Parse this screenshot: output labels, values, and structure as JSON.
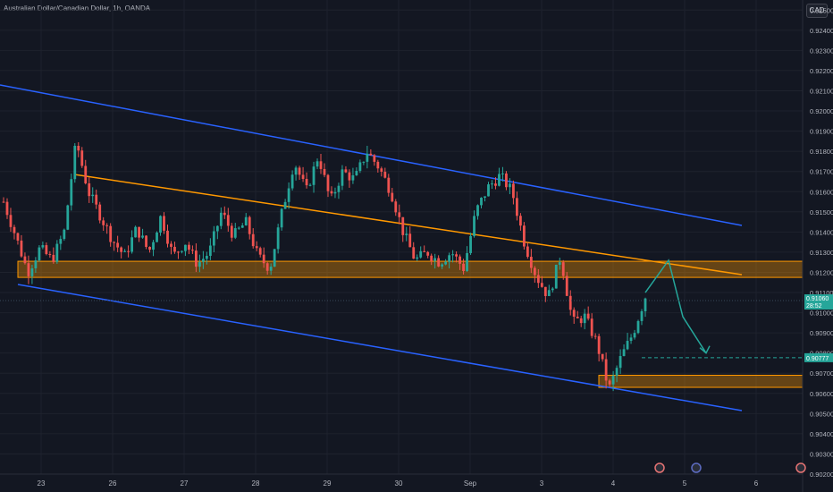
{
  "header": {
    "title": "Australian Dollar/Canadian Dollar, 1h, OANDA",
    "currency": "CAD"
  },
  "colors": {
    "background": "#131722",
    "grid": "#1e222d",
    "text": "#b2b5be",
    "up": "#26a69a",
    "down": "#ef5350",
    "channel": "#2962ff",
    "trendline": "#ff9800",
    "zone_fill": "#ff9800",
    "projection": "#26a69a",
    "last_price": "#26a69a"
  },
  "chart_data": {
    "type": "candlestick",
    "title": "Australian Dollar/Canadian Dollar, 1h, OANDA",
    "x_ticks": [
      "23",
      "26",
      "27",
      "28",
      "29",
      "30",
      "Sep",
      "3",
      "4",
      "5",
      "6"
    ],
    "y_ticks": [
      "0.92500",
      "0.92400",
      "0.92300",
      "0.92200",
      "0.92100",
      "0.92000",
      "0.91900",
      "0.91800",
      "0.91700",
      "0.91600",
      "0.91500",
      "0.91400",
      "0.91300",
      "0.91200",
      "0.91100",
      "0.91000",
      "0.90900",
      "0.90800",
      "0.90700",
      "0.90600",
      "0.90500",
      "0.90400",
      "0.90300",
      "0.90200"
    ],
    "ylim": [
      0.902,
      0.9255
    ],
    "last_price": {
      "value": "0.91060",
      "countdown": "28:52"
    },
    "target_price": {
      "value": "0.90777"
    },
    "price_path": [
      [
        "23",
        0.9155
      ],
      [
        "23",
        0.9138
      ],
      [
        "23",
        0.912
      ],
      [
        "23",
        0.9132
      ],
      [
        "23",
        0.9126
      ],
      [
        "23",
        0.914
      ],
      [
        "26",
        0.9185
      ],
      [
        "26",
        0.916
      ],
      [
        "26",
        0.9148
      ],
      [
        "26",
        0.9136
      ],
      [
        "26",
        0.9128
      ],
      [
        "26",
        0.9142
      ],
      [
        "27",
        0.913
      ],
      [
        "27",
        0.9148
      ],
      [
        "27",
        0.9128
      ],
      [
        "27",
        0.9135
      ],
      [
        "27",
        0.9124
      ],
      [
        "27",
        0.913
      ],
      [
        "28",
        0.915
      ],
      [
        "28",
        0.9138
      ],
      [
        "28",
        0.9145
      ],
      [
        "28",
        0.9128
      ],
      [
        "28",
        0.9122
      ],
      [
        "28",
        0.915
      ],
      [
        "29",
        0.9175
      ],
      [
        "29",
        0.916
      ],
      [
        "29",
        0.9178
      ],
      [
        "29",
        0.9155
      ],
      [
        "29",
        0.917
      ],
      [
        "29",
        0.9166
      ],
      [
        "30",
        0.918
      ],
      [
        "30",
        0.9172
      ],
      [
        "30",
        0.916
      ],
      [
        "30",
        0.914
      ],
      [
        "30",
        0.9126
      ],
      [
        "30",
        0.913
      ],
      [
        "Sep",
        0.9125
      ],
      [
        "Sep",
        0.913
      ],
      [
        "Sep",
        0.9122
      ],
      [
        "Sep",
        0.915
      ],
      [
        "Sep",
        0.9162
      ],
      [
        "Sep",
        0.9168
      ],
      [
        "3",
        0.916
      ],
      [
        "3",
        0.9135
      ],
      [
        "3",
        0.9118
      ],
      [
        "3",
        0.9108
      ],
      [
        "3",
        0.9128
      ],
      [
        "3",
        0.9095
      ],
      [
        "4",
        0.9098
      ],
      [
        "4",
        0.9085
      ],
      [
        "4",
        0.9062
      ],
      [
        "4",
        0.9078
      ],
      [
        "4",
        0.909
      ],
      [
        "4",
        0.9108
      ]
    ],
    "channel_upper": [
      [
        "23",
        0.9218
      ],
      [
        "5",
        0.9145
      ]
    ],
    "channel_lower": [
      [
        "23",
        0.9111
      ],
      [
        "5",
        0.9052
      ]
    ],
    "trendline": [
      [
        "26",
        0.9174
      ],
      [
        "5",
        0.9121
      ]
    ],
    "zones": [
      {
        "from": 0.91175,
        "to": 0.91255,
        "start": "23",
        "end": "6"
      },
      {
        "from": 0.9063,
        "to": 0.9069,
        "start": "4",
        "end": "6"
      }
    ],
    "projection": [
      [
        0.911,
        0.9126,
        0.9098,
        0.9081
      ]
    ],
    "grid": true
  }
}
